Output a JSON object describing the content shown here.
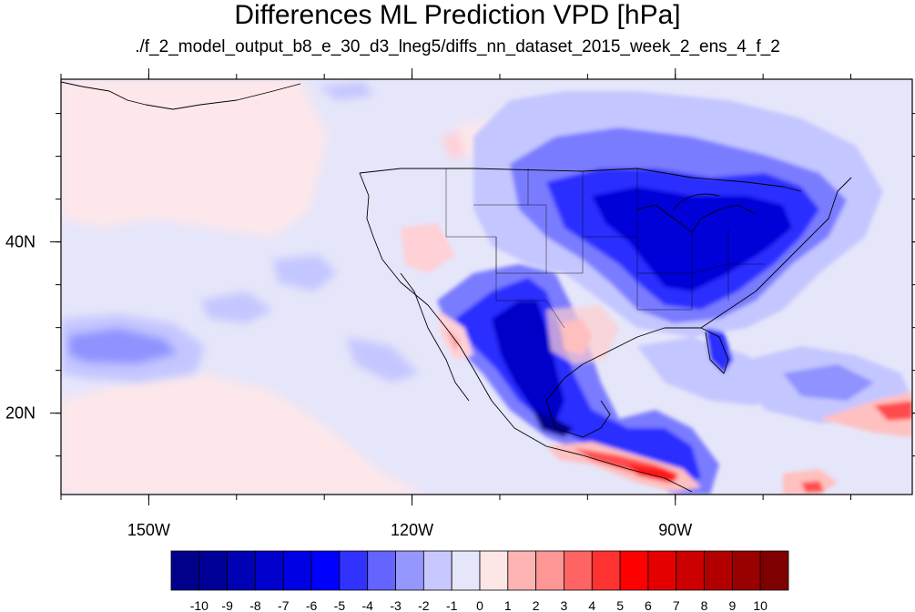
{
  "title": "Differences ML Prediction VPD [hPa]",
  "subtitle": "./f_2_model_output_b8_e_30_d3_lneg5/diffs_nn_dataset_2015_week_2_ens_4_f_2",
  "map": {
    "lon_range": [
      -160,
      -63
    ],
    "lat_range": [
      10.5,
      59
    ],
    "lon_ticks": [
      {
        "value": -150,
        "label": "150W"
      },
      {
        "value": -120,
        "label": "120W"
      },
      {
        "value": -90,
        "label": "90W"
      }
    ],
    "lat_ticks": [
      {
        "value": 40,
        "label": "40N"
      },
      {
        "value": 20,
        "label": "20N"
      }
    ],
    "background_color": "#e6e6fa"
  },
  "colorbar": {
    "labels": [
      "-10",
      "-9",
      "-8",
      "-7",
      "-6",
      "-5",
      "-4",
      "-3",
      "-2",
      "-1",
      "0",
      "1",
      "2",
      "3",
      "4",
      "5",
      "6",
      "7",
      "8",
      "9",
      "10"
    ],
    "colors": [
      "#00008b",
      "#000098",
      "#0000b4",
      "#0000cc",
      "#0000e5",
      "#0000ff",
      "#3232ff",
      "#6464ff",
      "#9696ff",
      "#c8c8ff",
      "#e6e6fa",
      "#ffe6e6",
      "#ffb4b4",
      "#ff9696",
      "#ff6464",
      "#ff3232",
      "#ff0000",
      "#e50000",
      "#cc0000",
      "#b20000",
      "#990000",
      "#7f0000"
    ]
  }
}
